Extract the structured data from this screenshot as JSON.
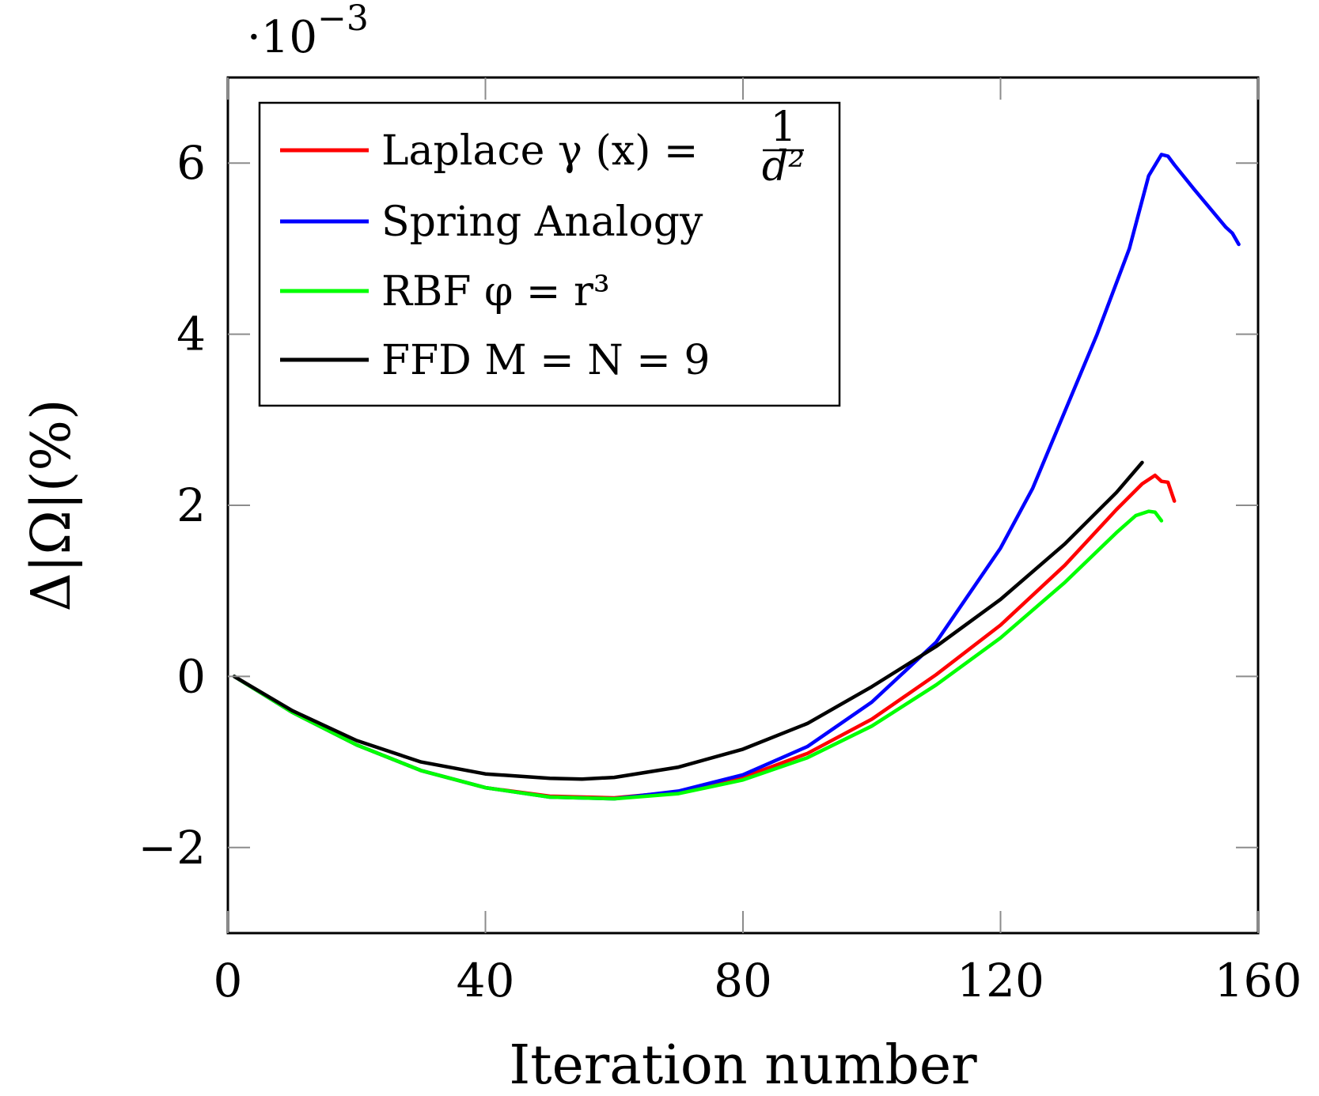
{
  "chart_data": {
    "type": "line",
    "title": "",
    "xlabel": "Iteration number",
    "ylabel": "Δ|Ω|(%)",
    "y_scale_label": {
      "base": "·10",
      "exponent": "−3"
    },
    "xlim": [
      0,
      160
    ],
    "ylim": [
      -3,
      7
    ],
    "x_ticks": [
      {
        "value": 0,
        "label": "0"
      },
      {
        "value": 40,
        "label": "40"
      },
      {
        "value": 80,
        "label": "80"
      },
      {
        "value": 120,
        "label": "120"
      },
      {
        "value": 160,
        "label": "160"
      }
    ],
    "y_ticks": [
      {
        "value": -2,
        "label": "−2"
      },
      {
        "value": 0,
        "label": "0"
      },
      {
        "value": 2,
        "label": "2"
      },
      {
        "value": 4,
        "label": "4"
      },
      {
        "value": 6,
        "label": "6"
      }
    ],
    "grid": false,
    "legend_position": "top-left",
    "series": [
      {
        "name": "Laplace γ (x) = 1/d²",
        "legend_label": "Laplace γ (x) =",
        "legend_fraction": {
          "numerator": "1",
          "denominator": "d²"
        },
        "color": "#ff0000",
        "x": [
          1,
          10,
          20,
          30,
          40,
          50,
          60,
          70,
          80,
          90,
          100,
          110,
          120,
          130,
          138,
          142,
          144,
          145,
          146,
          147
        ],
        "y": [
          0.0,
          -0.42,
          -0.8,
          -1.1,
          -1.3,
          -1.4,
          -1.42,
          -1.35,
          -1.18,
          -0.9,
          -0.5,
          0.02,
          0.6,
          1.3,
          1.95,
          2.25,
          2.35,
          2.28,
          2.27,
          2.05
        ]
      },
      {
        "name": "Spring Analogy",
        "legend_label": "Spring Analogy",
        "color": "#0000ff",
        "x": [
          1,
          10,
          20,
          30,
          40,
          50,
          60,
          70,
          80,
          90,
          100,
          110,
          120,
          125,
          130,
          135,
          140,
          143,
          145,
          146,
          147,
          150,
          155,
          156,
          157
        ],
        "y": [
          0.0,
          -0.42,
          -0.8,
          -1.1,
          -1.3,
          -1.41,
          -1.43,
          -1.34,
          -1.15,
          -0.82,
          -0.3,
          0.4,
          1.5,
          2.2,
          3.1,
          4.0,
          5.0,
          5.85,
          6.1,
          6.08,
          5.98,
          5.7,
          5.25,
          5.18,
          5.05
        ]
      },
      {
        "name": "RBF φ = r³",
        "legend_label": "RBF φ = r³",
        "color": "#00ff00",
        "x": [
          1,
          10,
          20,
          30,
          40,
          50,
          60,
          70,
          80,
          90,
          100,
          110,
          120,
          130,
          138,
          141,
          143,
          144,
          145
        ],
        "y": [
          0.0,
          -0.42,
          -0.8,
          -1.1,
          -1.3,
          -1.41,
          -1.43,
          -1.37,
          -1.21,
          -0.95,
          -0.58,
          -0.1,
          0.45,
          1.1,
          1.68,
          1.88,
          1.93,
          1.92,
          1.82
        ]
      },
      {
        "name": "FFD M = N = 9",
        "legend_label": "FFD M = N = 9",
        "color": "#000000",
        "x": [
          1,
          10,
          20,
          30,
          40,
          50,
          55,
          60,
          70,
          80,
          90,
          100,
          110,
          120,
          130,
          138,
          142
        ],
        "y": [
          0.0,
          -0.4,
          -0.75,
          -1.0,
          -1.14,
          -1.19,
          -1.2,
          -1.18,
          -1.06,
          -0.85,
          -0.55,
          -0.12,
          0.35,
          0.9,
          1.55,
          2.15,
          2.5
        ]
      }
    ]
  }
}
